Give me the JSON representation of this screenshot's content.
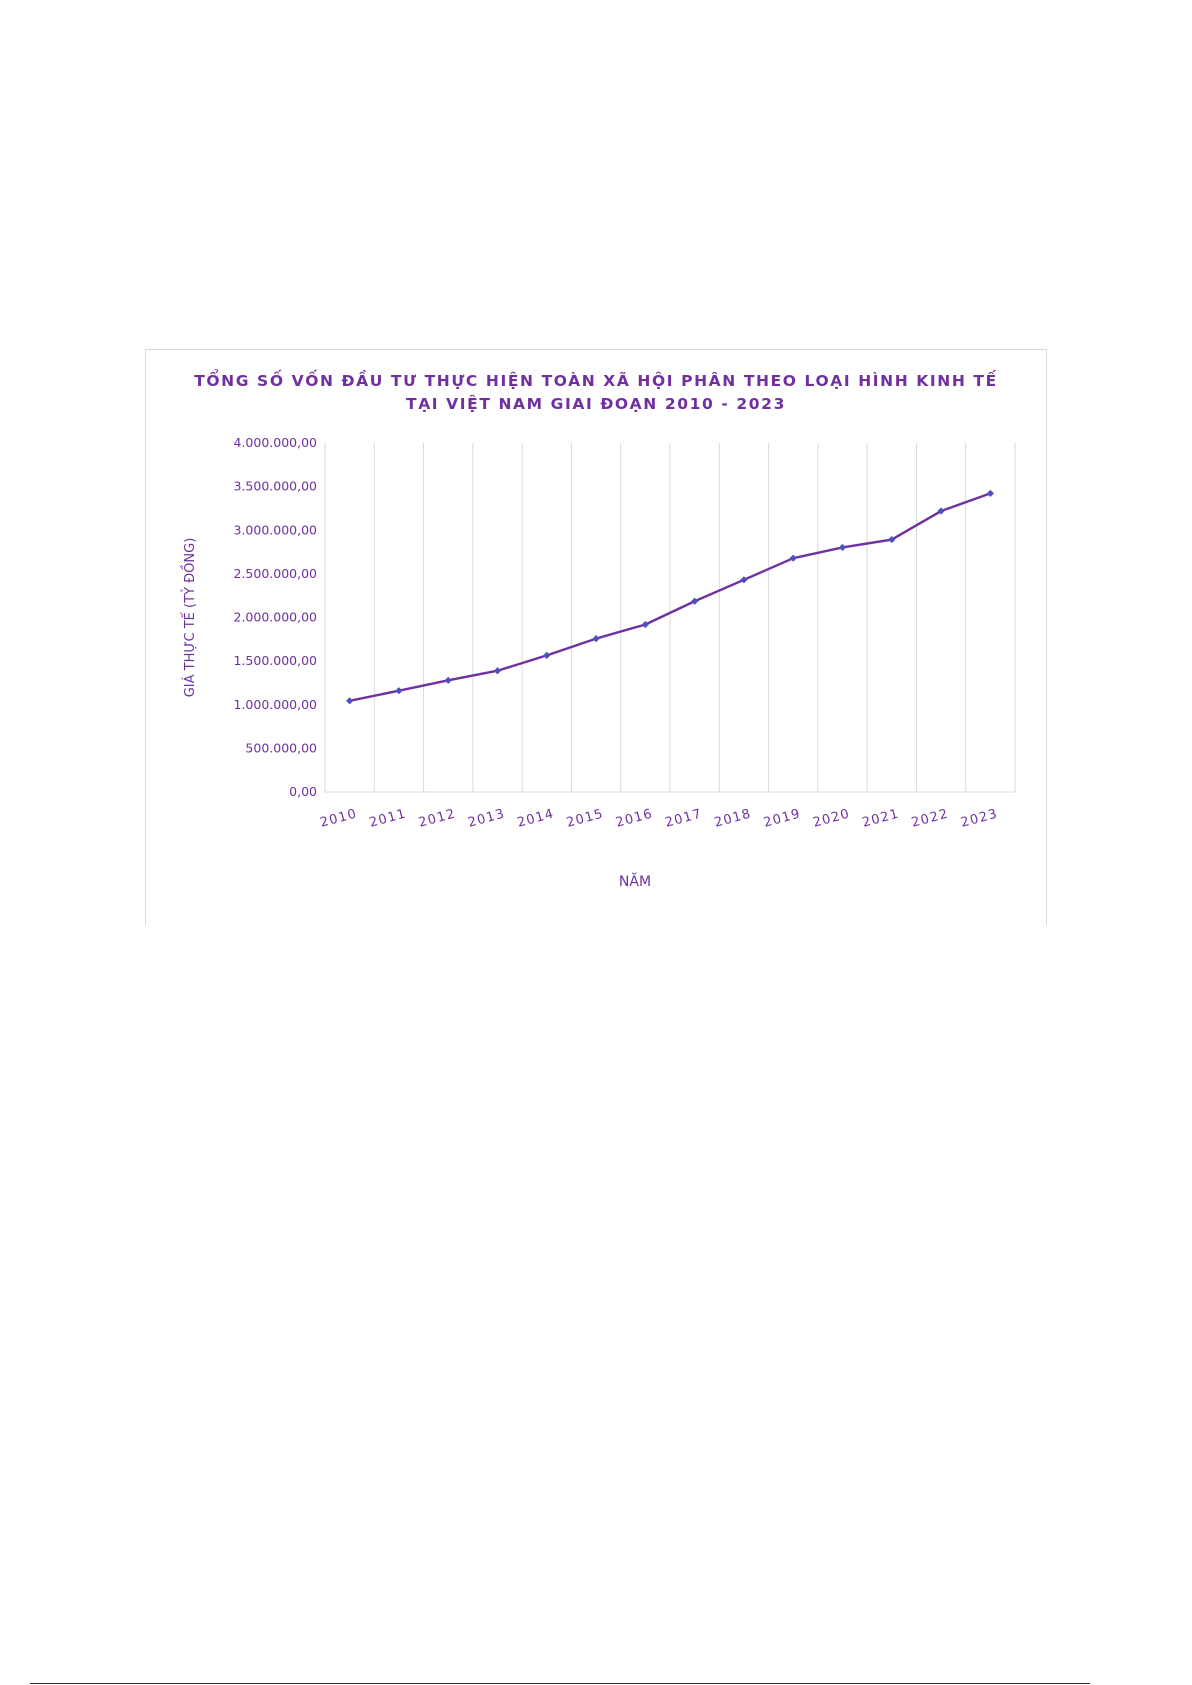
{
  "chart_data": {
    "type": "line",
    "title_lines": [
      "TỔNG SỐ VỐN ĐẦU TƯ THỰC HIỆN TOÀN XÃ HỘI PHÂN THEO LOẠI HÌNH KINH TẾ",
      "TẠI VIỆT NAM GIAI ĐOẠN 2010 - 2023"
    ],
    "xlabel": "NĂM",
    "ylabel": "GIÁ THỰC TẾ (TỶ ĐỒNG)",
    "categories": [
      "2010",
      "2011",
      "2012",
      "2013",
      "2014",
      "2015",
      "2016",
      "2017",
      "2018",
      "2019",
      "2020",
      "2021",
      "2022",
      "2023"
    ],
    "series": [
      {
        "values": [
          1045000,
          1161000,
          1280000,
          1390000,
          1566000,
          1758000,
          1920000,
          2186000,
          2432000,
          2680000,
          2803000,
          2893000,
          3220000,
          3423000
        ]
      }
    ],
    "ylim": [
      0,
      4000000
    ],
    "yticks": [
      0,
      500000,
      1000000,
      1500000,
      2000000,
      2500000,
      3000000,
      3500000,
      4000000
    ],
    "ytick_labels": [
      "0,00",
      "500.000,00",
      "1.000.000,00",
      "1.500.000,00",
      "2.000.000,00",
      "2.500.000,00",
      "3.000.000,00",
      "3.500.000,00",
      "4.000.000,00"
    ],
    "grid": "vertical",
    "legend": "none",
    "colors": {
      "line": "#7030a0",
      "marker": "#4e4fc0",
      "text": "#7030a0",
      "grid": "#d9d9d9"
    }
  }
}
